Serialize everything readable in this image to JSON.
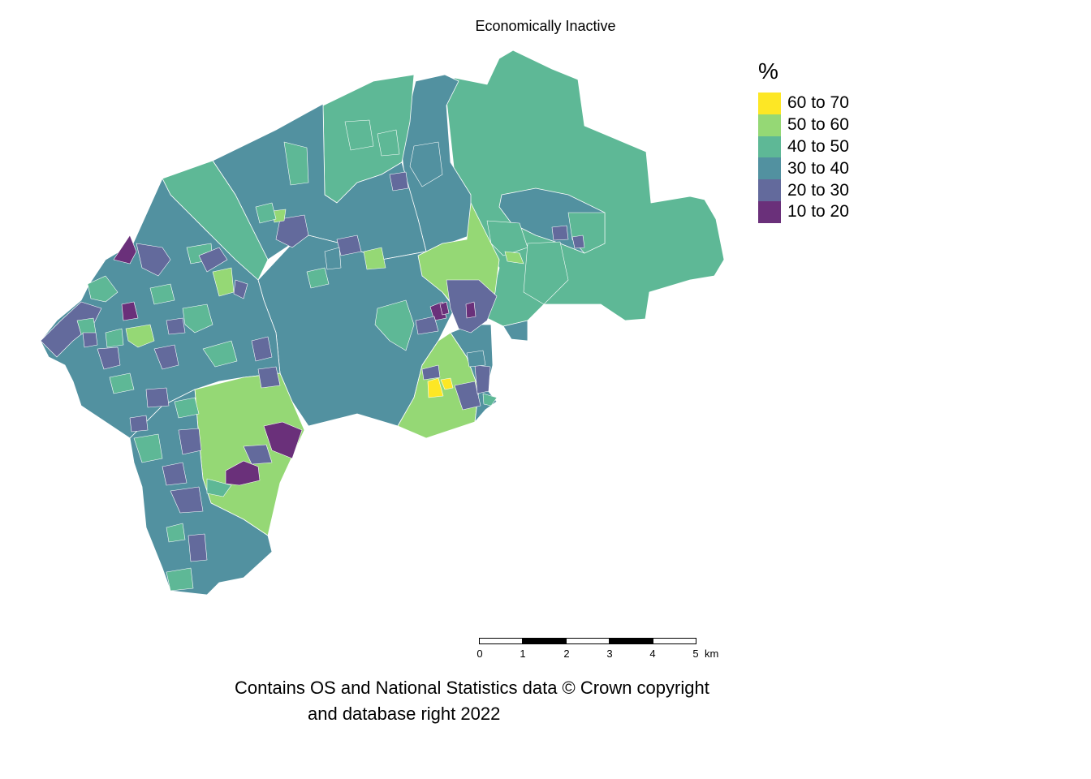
{
  "title": "Economically Inactive",
  "legend": {
    "title": "%",
    "items": [
      {
        "label": "60 to 70",
        "color": "#fde725"
      },
      {
        "label": "50 to 60",
        "color": "#95d875"
      },
      {
        "label": "40 to 50",
        "color": "#5eb896"
      },
      {
        "label": "30 to 40",
        "color": "#5291a0"
      },
      {
        "label": "20 to 30",
        "color": "#636a9c"
      },
      {
        "label": "10 to 20",
        "color": "#6a307a"
      }
    ]
  },
  "scalebar": {
    "ticks": [
      "0",
      "1",
      "2",
      "3",
      "4",
      "5"
    ],
    "unit": "km"
  },
  "caption": {
    "line1": "Contains OS and National Statistics data © Crown copyright",
    "line2": "and database right 2022"
  },
  "colors": {
    "boundary": "#ffffff"
  }
}
